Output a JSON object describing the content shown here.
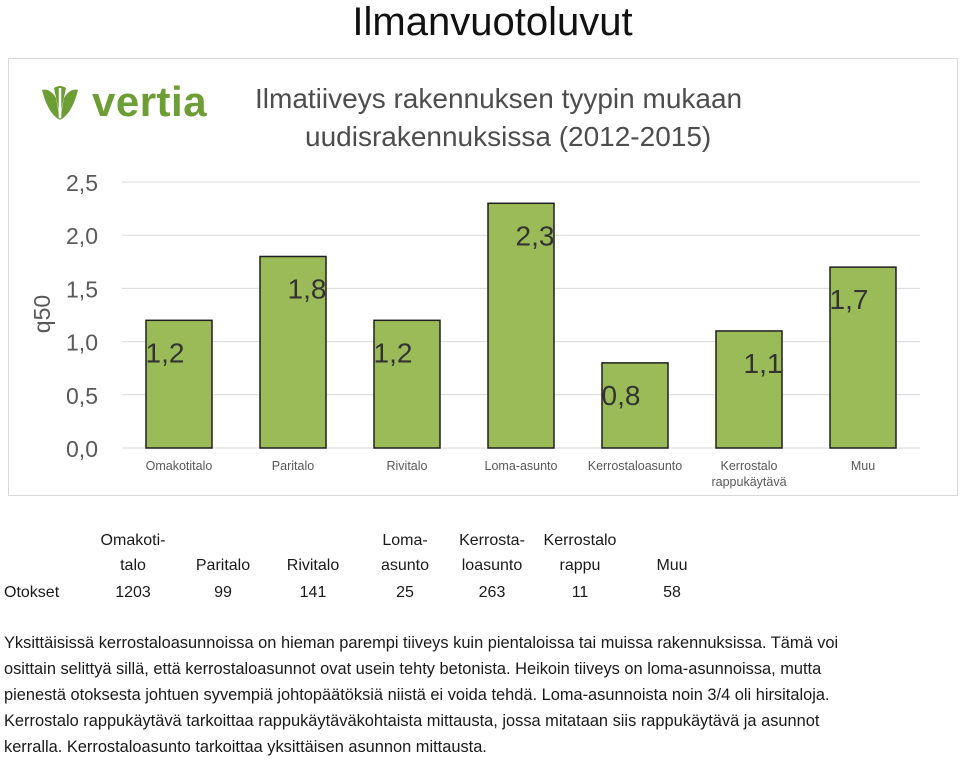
{
  "page_title": "Ilmanvuotoluvut",
  "logo_text": "vertia",
  "colors": {
    "bar": "#9bbb59",
    "bar_border": "#1f1f1f",
    "logo": "#6d9e35",
    "grid": "#d9d9d9"
  },
  "chart_data": {
    "type": "bar",
    "title": "Ilmatiiveys rakennuksen tyypin mukaan uudisrakennuksissa (2012-2015)",
    "title_lines": [
      "Ilmatiiveys rakennuksen tyypin mukaan",
      "uudisrakennuksissa (2012-2015)"
    ],
    "ylabel": "q50",
    "xlabel": "",
    "ylim": [
      0,
      2.5
    ],
    "yticks": [
      0,
      0.5,
      1.0,
      1.5,
      2.0,
      2.5
    ],
    "ytick_labels": [
      "0,0",
      "0,5",
      "1,0",
      "1,5",
      "2,0",
      "2,5"
    ],
    "grid": true,
    "categories": [
      [
        "Omakotitalo"
      ],
      [
        "Paritalo"
      ],
      [
        "Rivitalo"
      ],
      [
        "Loma-asunto"
      ],
      [
        "Kerrostaloasunto"
      ],
      [
        "Kerrostalo",
        "rappukäytävä"
      ],
      [
        "Muu"
      ]
    ],
    "values": [
      1.2,
      1.8,
      1.2,
      2.3,
      0.8,
      1.1,
      1.7
    ],
    "value_labels": [
      "1,2",
      "1,8",
      "1,2",
      "2,3",
      "0,8",
      "1,1",
      "1,7"
    ]
  },
  "sample_table": {
    "row_label": "Otokset",
    "headers": [
      [
        "Omakoti-",
        "talo"
      ],
      [
        "",
        "Paritalo"
      ],
      [
        "",
        "Rivitalo"
      ],
      [
        "Loma-",
        "asunto"
      ],
      [
        "Kerrosta-",
        "loasunto"
      ],
      [
        "Kerrostalo",
        "rappu"
      ],
      [
        "",
        "Muu"
      ]
    ],
    "counts": [
      "1203",
      "99",
      "141",
      "25",
      "263",
      "11",
      "58"
    ]
  },
  "footnote_lines": [
    "Yksittäisissä kerrostaloasunnoissa on hieman parempi tiiveys kuin pientaloissa tai muissa rakennuksissa. Tämä voi",
    "osittain selittyä sillä, että kerrostaloasunnot ovat usein tehty betonista. Heikoin tiiveys on loma-asunnoissa, mutta",
    "pienestä otoksesta johtuen syvempiä johtopäätöksiä niistä ei voida tehdä. Loma-asunnoista noin 3/4 oli hirsitaloja.",
    "Kerrostalo rappukäytävä tarkoittaa rappukäytäväkohtaista mittausta, jossa mitataan siis rappukäytävä ja asunnot",
    "kerralla. Kerrostaloasunto tarkoittaa yksittäisen asunnon mittausta."
  ]
}
